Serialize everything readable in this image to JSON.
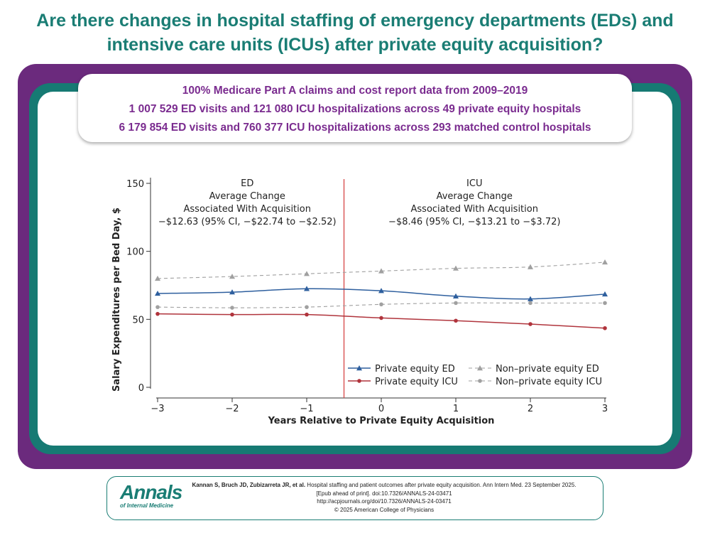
{
  "title": {
    "line1": "Are there changes in hospital staffing of emergency departments (EDs) and",
    "line2": "intensive care units (ICUs) after private equity acquisition?"
  },
  "info": {
    "line1": "100% Medicare Part A claims and cost report data from 2009–2019",
    "line2": "1 007 529 ED visits and 121 080 ICU hospitalizations across 49 private equity hospitals",
    "line3": "6 179 854 ED visits and 760 377 ICU hospitalizations across 293 matched control hospitals"
  },
  "chart_data": {
    "type": "line",
    "xlabel": "Years Relative to Private Equity Acquisition",
    "ylabel": "Salary Expenditures per Bed Day, $",
    "x": [
      -3,
      -2,
      -1,
      0,
      1,
      2,
      3
    ],
    "x_tick_labels": [
      "−3",
      "−2",
      "−1",
      "0",
      "1",
      "2",
      "3"
    ],
    "xlim": [
      -3,
      3
    ],
    "ylim": [
      0,
      150
    ],
    "y_ticks": [
      0,
      50,
      100,
      150
    ],
    "y_tick_labels": [
      "0",
      "50",
      "100",
      "150"
    ],
    "acquisition_line_x": -0.5,
    "series": [
      {
        "name": "Private equity ED",
        "values": [
          69,
          70,
          72.5,
          71,
          67,
          65,
          68.5
        ],
        "color": "#2e5f9e",
        "dashed": false,
        "marker": "triangle"
      },
      {
        "name": "Private equity ICU",
        "values": [
          54,
          53.5,
          53.5,
          51,
          49,
          46.5,
          43.5
        ],
        "color": "#b0343c",
        "dashed": false,
        "marker": "circle"
      },
      {
        "name": "Non–private equity ED",
        "values": [
          80,
          81.5,
          83.5,
          85.5,
          87.5,
          88.5,
          92
        ],
        "color": "#a0a0a0",
        "dashed": true,
        "marker": "triangle"
      },
      {
        "name": "Non–private equity ICU",
        "values": [
          59,
          58.5,
          59,
          61,
          62,
          62,
          62
        ],
        "color": "#a0a0a0",
        "dashed": true,
        "marker": "circle"
      }
    ],
    "annotations": [
      {
        "label": "ED",
        "line2": "Average Change",
        "line3": "Associated With Acquisition",
        "line4": "−$12.63 (95% CI, −$22.74 to −$2.52)"
      },
      {
        "label": "ICU",
        "line2": "Average Change",
        "line3": "Associated With Acquisition",
        "line4": "−$8.46 (95% CI, −$13.21 to −$3.72)"
      }
    ],
    "legend_position": "bottom-right"
  },
  "footer": {
    "logo_main": "Annals",
    "logo_sub": "of Internal Medicine",
    "authors": "Kannan S, Bruch JD, Zubizarreta JR, et al.",
    "citation1": " Hospital staffing and patient outcomes after private equity acquisition. Ann Intern Med. 23 September 2025.",
    "citation2": "[Epub ahead of print]. doi:10.7326/ANNALS-24-03471",
    "citation3": "http://acpjournals.org/doi/10.7326/ANNALS-24-03471",
    "citation4": "© 2025 American College of Physicians"
  },
  "colors": {
    "teal": "#1a7d74",
    "purple": "#6b2a7d",
    "info_text": "#7a2b8f"
  }
}
